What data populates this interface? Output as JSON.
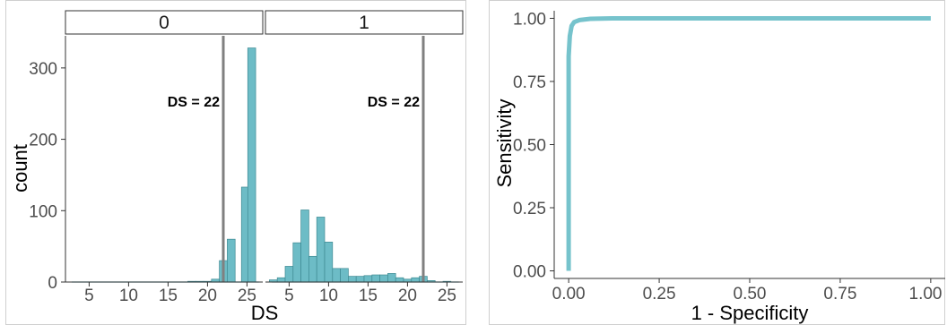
{
  "chart_data": [
    {
      "type": "bar",
      "chart_kind": "faceted histogram",
      "xlabel": "DS",
      "ylabel": "count",
      "xlim": [
        2,
        27
      ],
      "ylim": [
        0,
        345
      ],
      "x_ticks": [
        5,
        10,
        15,
        20,
        25
      ],
      "y_ticks": [
        0,
        100,
        200,
        300
      ],
      "bar_color": "#6dbcc6",
      "bar_outline_color": "#3f8a93",
      "vline_color": "#808080",
      "bin_width": 0.8,
      "facets": [
        {
          "strip_label": "0",
          "vline_x": 22,
          "annotation": "DS = 22",
          "bins": [
            {
              "x": 3,
              "y": 0
            },
            {
              "x": 4,
              "y": 0
            },
            {
              "x": 5,
              "y": 0
            },
            {
              "x": 6,
              "y": 0
            },
            {
              "x": 7,
              "y": 0
            },
            {
              "x": 8,
              "y": 0
            },
            {
              "x": 9,
              "y": 0
            },
            {
              "x": 10,
              "y": 0
            },
            {
              "x": 11,
              "y": 0
            },
            {
              "x": 12,
              "y": 0
            },
            {
              "x": 13,
              "y": 0
            },
            {
              "x": 14,
              "y": 0
            },
            {
              "x": 15,
              "y": 0
            },
            {
              "x": 16,
              "y": 0
            },
            {
              "x": 17,
              "y": 0
            },
            {
              "x": 18,
              "y": 1
            },
            {
              "x": 19,
              "y": 1
            },
            {
              "x": 20,
              "y": 1
            },
            {
              "x": 21,
              "y": 4
            },
            {
              "x": 22,
              "y": 30
            },
            {
              "x": 23,
              "y": 60
            },
            {
              "x": 24,
              "y": 0
            },
            {
              "x": 24.8,
              "y": 133
            },
            {
              "x": 25.6,
              "y": 328
            }
          ]
        },
        {
          "strip_label": "1",
          "vline_x": 22,
          "annotation": "DS = 22",
          "bins": [
            {
              "x": 3,
              "y": 3
            },
            {
              "x": 4,
              "y": 6
            },
            {
              "x": 5,
              "y": 22
            },
            {
              "x": 6,
              "y": 55
            },
            {
              "x": 7,
              "y": 101
            },
            {
              "x": 8,
              "y": 36
            },
            {
              "x": 9,
              "y": 91
            },
            {
              "x": 10,
              "y": 56
            },
            {
              "x": 11,
              "y": 19
            },
            {
              "x": 12,
              "y": 19
            },
            {
              "x": 13,
              "y": 8
            },
            {
              "x": 14,
              "y": 8
            },
            {
              "x": 15,
              "y": 9
            },
            {
              "x": 16,
              "y": 10
            },
            {
              "x": 17,
              "y": 10
            },
            {
              "x": 18,
              "y": 12
            },
            {
              "x": 19,
              "y": 6
            },
            {
              "x": 20,
              "y": 4
            },
            {
              "x": 21,
              "y": 6
            },
            {
              "x": 22,
              "y": 8
            },
            {
              "x": 23,
              "y": 2
            },
            {
              "x": 24,
              "y": 0
            },
            {
              "x": 25,
              "y": 1
            },
            {
              "x": 26,
              "y": 0
            }
          ]
        }
      ]
    },
    {
      "type": "line",
      "chart_kind": "ROC curve",
      "xlabel": "1 - Specificity",
      "ylabel": "Sensitivity",
      "xlim": [
        -0.04,
        1.04
      ],
      "ylim": [
        -0.03,
        1.03
      ],
      "x_ticks": [
        "0.00",
        "0.25",
        "0.50",
        "0.75",
        "1.00"
      ],
      "y_ticks": [
        "0.00",
        "0.25",
        "0.50",
        "0.75",
        "1.00"
      ],
      "line_color": "#76c3cc",
      "points": [
        {
          "x": 0.0,
          "y": 0.0
        },
        {
          "x": 0.0,
          "y": 0.85
        },
        {
          "x": 0.003,
          "y": 0.93
        },
        {
          "x": 0.008,
          "y": 0.97
        },
        {
          "x": 0.015,
          "y": 0.985
        },
        {
          "x": 0.03,
          "y": 0.993
        },
        {
          "x": 0.06,
          "y": 0.998
        },
        {
          "x": 0.12,
          "y": 1.0
        },
        {
          "x": 1.0,
          "y": 1.0
        }
      ]
    }
  ]
}
